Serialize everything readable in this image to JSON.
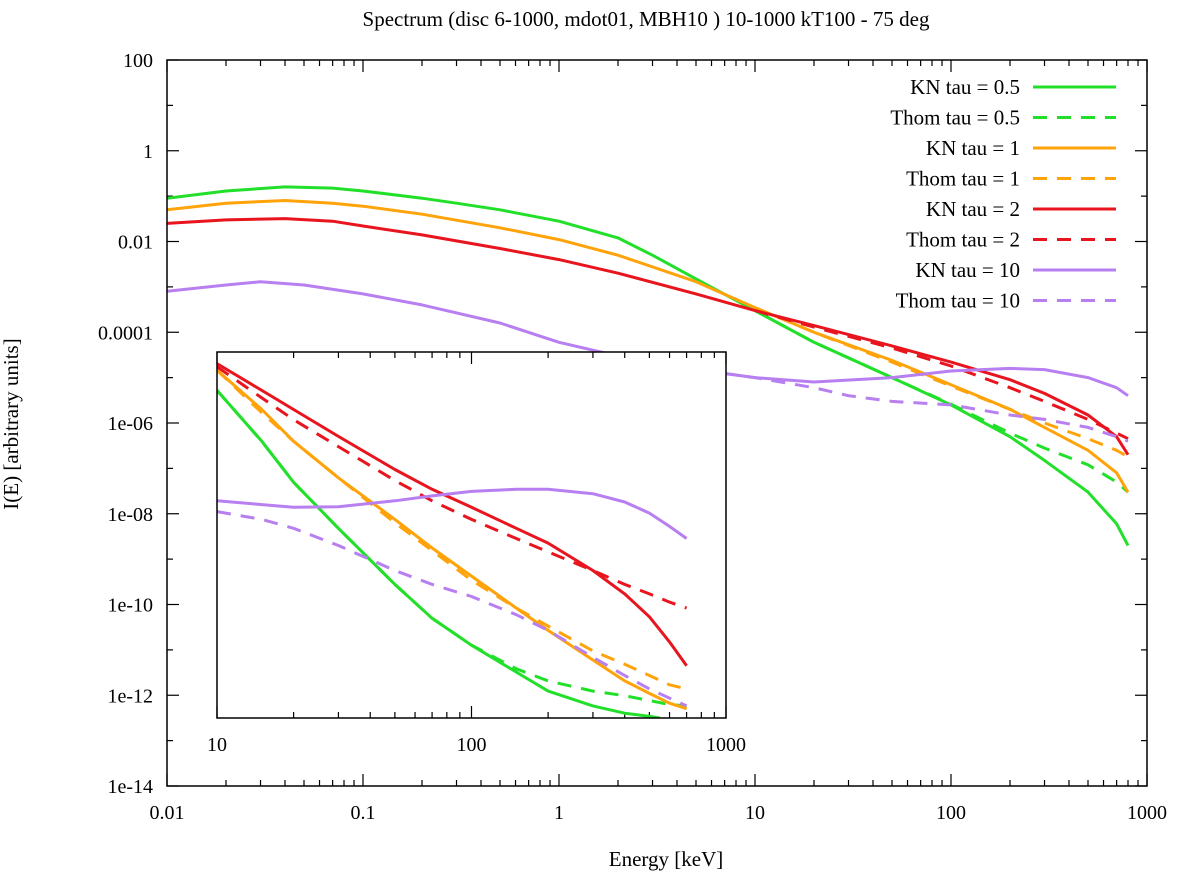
{
  "chart_data": {
    "type": "line",
    "title": "Spectrum (disc 6-1000, mdot01, MBH10 ) 10-1000 kT100 - 75 deg",
    "xlabel": "Energy [keV]",
    "ylabel": "I(E) [arbitrary units]",
    "xscale": "log",
    "yscale": "log",
    "xlim": [
      0.01,
      1000
    ],
    "ylim": [
      1e-14,
      100
    ],
    "xticks": [
      {
        "value": 0.01,
        "label": "0.01"
      },
      {
        "value": 0.1,
        "label": "0.1"
      },
      {
        "value": 1,
        "label": "1"
      },
      {
        "value": 10,
        "label": "10"
      },
      {
        "value": 100,
        "label": "100"
      },
      {
        "value": 1000,
        "label": "1000"
      }
    ],
    "yticks": [
      {
        "value": 100,
        "label": "100"
      },
      {
        "value": 1,
        "label": "1"
      },
      {
        "value": 0.01,
        "label": "0.01"
      },
      {
        "value": 0.0001,
        "label": "0.0001"
      },
      {
        "value": 1e-06,
        "label": "1e-06"
      },
      {
        "value": 1e-08,
        "label": "1e-08"
      },
      {
        "value": 1e-10,
        "label": "1e-10"
      },
      {
        "value": 1e-12,
        "label": "1e-12"
      },
      {
        "value": 1e-14,
        "label": "1e-14"
      }
    ],
    "legend_position": "top-right",
    "series": [
      {
        "name": "KN tau = 0.5",
        "color": "#22e02a",
        "dash": "solid",
        "x": [
          0.01,
          0.02,
          0.04,
          0.07,
          0.1,
          0.2,
          0.3,
          0.5,
          1,
          2,
          3,
          5,
          10,
          20,
          50,
          100,
          200,
          300,
          500,
          700,
          800
        ],
        "y": [
          0.09,
          0.13,
          0.16,
          0.15,
          0.13,
          0.09,
          0.07,
          0.05,
          0.028,
          0.012,
          0.005,
          0.0015,
          0.0003,
          6e-05,
          1e-05,
          2.5e-06,
          5e-07,
          1.5e-07,
          3e-08,
          6e-09,
          2e-09
        ]
      },
      {
        "name": "Thom tau = 0.5",
        "color": "#22e02a",
        "dash": "dashed",
        "x": [
          10,
          20,
          50,
          100,
          200,
          300,
          500,
          700,
          800
        ],
        "y": [
          0.0003,
          6e-05,
          1e-05,
          2.6e-06,
          6e-07,
          2.8e-07,
          1.2e-07,
          5e-08,
          3e-08
        ]
      },
      {
        "name": "KN tau = 1",
        "color": "#ffa30a",
        "dash": "solid",
        "x": [
          0.01,
          0.02,
          0.04,
          0.07,
          0.1,
          0.2,
          0.5,
          1,
          2,
          5,
          10,
          20,
          50,
          100,
          200,
          300,
          500,
          700,
          800
        ],
        "y": [
          0.05,
          0.07,
          0.08,
          0.07,
          0.06,
          0.04,
          0.02,
          0.011,
          0.005,
          0.0013,
          0.00035,
          0.0001,
          2.4e-05,
          7e-06,
          2e-06,
          8e-07,
          2.5e-07,
          8e-08,
          3e-08
        ]
      },
      {
        "name": "Thom tau = 1",
        "color": "#ffa30a",
        "dash": "dashed",
        "x": [
          10,
          20,
          50,
          100,
          200,
          300,
          500,
          700,
          800
        ],
        "y": [
          0.00035,
          0.0001,
          2.2e-05,
          6.5e-06,
          2e-06,
          1e-06,
          4.5e-07,
          2.5e-07,
          1.8e-07
        ]
      },
      {
        "name": "KN tau = 2",
        "color": "#e8141e",
        "dash": "solid",
        "x": [
          0.01,
          0.02,
          0.04,
          0.07,
          0.1,
          0.2,
          0.5,
          1,
          2,
          5,
          10,
          20,
          50,
          100,
          200,
          300,
          500,
          700,
          800
        ],
        "y": [
          0.025,
          0.03,
          0.032,
          0.028,
          0.022,
          0.014,
          0.007,
          0.004,
          0.002,
          0.0007,
          0.0003,
          0.00014,
          5e-05,
          2.2e-05,
          9e-06,
          4.5e-06,
          1.5e-06,
          5e-07,
          2e-07
        ]
      },
      {
        "name": "Thom tau = 2",
        "color": "#e8141e",
        "dash": "dashed",
        "x": [
          10,
          20,
          50,
          100,
          200,
          300,
          500,
          700,
          800
        ],
        "y": [
          0.0003,
          0.00013,
          4.5e-05,
          1.8e-05,
          6e-06,
          3e-06,
          1.2e-06,
          6e-07,
          4.5e-07
        ]
      },
      {
        "name": "KN tau = 10",
        "color": "#b77ff0",
        "dash": "solid",
        "x": [
          0.01,
          0.02,
          0.03,
          0.05,
          0.1,
          0.2,
          0.5,
          1,
          2,
          5,
          10,
          20,
          50,
          100,
          200,
          300,
          500,
          700,
          800
        ],
        "y": [
          0.0008,
          0.0011,
          0.0013,
          0.0011,
          0.0007,
          0.0004,
          0.00016,
          6e-05,
          3e-05,
          1.5e-05,
          1e-05,
          8e-06,
          1e-05,
          1.4e-05,
          1.6e-05,
          1.5e-05,
          1e-05,
          6e-06,
          4e-06
        ]
      },
      {
        "name": "Thom tau = 10",
        "color": "#b77ff0",
        "dash": "dashed",
        "x": [
          3,
          5,
          10,
          20,
          30,
          50,
          100,
          200,
          300,
          500,
          700,
          800
        ],
        "y": [
          2e-05,
          1.5e-05,
          1e-05,
          6e-06,
          4e-06,
          3e-06,
          2.5e-06,
          1.5e-06,
          1.2e-06,
          8e-07,
          5e-07,
          4e-07
        ]
      }
    ],
    "inset": {
      "xscale": "log",
      "yscale": "log",
      "xlim": [
        10,
        1000
      ],
      "ylim": [
        2e-06,
        0.0005
      ],
      "xticks": [
        {
          "value": 10,
          "label": "10"
        },
        {
          "value": 100,
          "label": "100"
        },
        {
          "value": 1000,
          "label": "1000"
        }
      ],
      "series": [
        {
          "name": "KN tau = 0.5",
          "color": "#22e02a",
          "dash": "solid",
          "x": [
            10,
            15,
            20,
            30,
            50,
            70,
            100,
            150,
            200,
            300,
            400,
            500,
            550
          ],
          "y": [
            0.00028,
            0.00013,
            7e-05,
            3.5e-05,
            1.5e-05,
            9e-06,
            6e-06,
            4e-06,
            3e-06,
            2.4e-06,
            2.15e-06,
            2.05e-06,
            2e-06
          ]
        },
        {
          "name": "Thom tau = 0.5",
          "color": "#22e02a",
          "dash": "dashed",
          "x": [
            10,
            15,
            20,
            30,
            50,
            70,
            100,
            150,
            200,
            300,
            400,
            500,
            600,
            700
          ],
          "y": [
            0.00028,
            0.00013,
            7e-05,
            3.5e-05,
            1.5e-05,
            9e-06,
            6e-06,
            4.2e-06,
            3.5e-06,
            3e-06,
            2.8e-06,
            2.6e-06,
            2.45e-06,
            2.4e-06
          ]
        },
        {
          "name": "KN tau = 1",
          "color": "#ffa30a",
          "dash": "solid",
          "x": [
            10,
            15,
            20,
            30,
            50,
            70,
            100,
            150,
            200,
            300,
            400,
            500,
            600,
            700
          ],
          "y": [
            0.00038,
            0.00021,
            0.00013,
            7.5e-05,
            4e-05,
            2.6e-05,
            1.7e-05,
            1.05e-05,
            7.5e-06,
            4.8e-06,
            3.5e-06,
            2.9e-06,
            2.5e-06,
            2.3e-06
          ]
        },
        {
          "name": "Thom tau = 1",
          "color": "#ffa30a",
          "dash": "dashed",
          "x": [
            10,
            15,
            20,
            30,
            50,
            70,
            100,
            150,
            200,
            300,
            400,
            500,
            600,
            700
          ],
          "y": [
            0.00038,
            0.0002,
            0.00013,
            7.5e-05,
            3.8e-05,
            2.5e-05,
            1.6e-05,
            1.05e-05,
            8e-06,
            5.5e-06,
            4.5e-06,
            3.8e-06,
            3.3e-06,
            3.1e-06
          ]
        },
        {
          "name": "KN tau = 2",
          "color": "#e8141e",
          "dash": "solid",
          "x": [
            10,
            15,
            20,
            30,
            50,
            70,
            100,
            150,
            200,
            300,
            400,
            500,
            600,
            700
          ],
          "y": [
            0.00042,
            0.00028,
            0.00021,
            0.00014,
            8.5e-05,
            6.3e-05,
            4.8e-05,
            3.5e-05,
            2.8e-05,
            1.85e-05,
            1.3e-05,
            9.2e-06,
            6.3e-06,
            4.4e-06
          ]
        },
        {
          "name": "Thom tau = 2",
          "color": "#e8141e",
          "dash": "dashed",
          "x": [
            10,
            15,
            20,
            30,
            50,
            70,
            100,
            150,
            200,
            300,
            400,
            500,
            600,
            700
          ],
          "y": [
            0.0004,
            0.00025,
            0.00018,
            0.00012,
            7.2e-05,
            5.3e-05,
            4e-05,
            3e-05,
            2.45e-05,
            1.85e-05,
            1.5e-05,
            1.3e-05,
            1.15e-05,
            1.05e-05
          ]
        },
        {
          "name": "KN tau = 10",
          "color": "#b77ff0",
          "dash": "solid",
          "x": [
            10,
            15,
            20,
            30,
            50,
            70,
            100,
            150,
            200,
            300,
            400,
            500,
            600,
            700
          ],
          "y": [
            5.3e-05,
            5e-05,
            4.8e-05,
            4.85e-05,
            5.3e-05,
            5.7e-05,
            6.1e-05,
            6.3e-05,
            6.3e-05,
            5.9e-05,
            5.2e-05,
            4.4e-05,
            3.6e-05,
            3e-05
          ]
        },
        {
          "name": "Thom tau = 10",
          "color": "#b77ff0",
          "dash": "dashed",
          "x": [
            10,
            15,
            20,
            30,
            50,
            70,
            100,
            150,
            200,
            300,
            400,
            500,
            600,
            700
          ],
          "y": [
            4.5e-05,
            4e-05,
            3.5e-05,
            2.7e-05,
            1.85e-05,
            1.5e-05,
            1.25e-05,
            9.5e-06,
            7.5e-06,
            5e-06,
            3.8e-06,
            3.1e-06,
            2.7e-06,
            2.4e-06
          ]
        }
      ]
    }
  }
}
